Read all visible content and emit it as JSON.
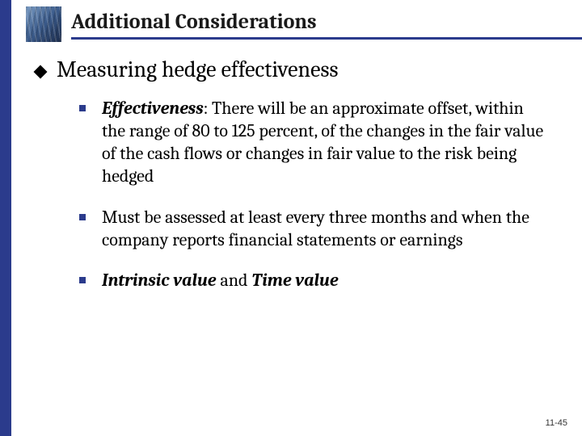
{
  "slide": {
    "title": "Additional Considerations",
    "main_bullet": "Measuring hedge effectiveness",
    "sub_bullets": [
      {
        "emphasis": "Effectiveness",
        "rest": ": There will be an approximate offset, within the range of 80 to 125 percent, of the changes in the fair value of the cash flows or changes in fair value to the risk being hedged"
      },
      {
        "emphasis": "",
        "rest": "Must be assessed at least every three months and when the company reports financial statements or earnings"
      },
      {
        "emphasis_parts": [
          "Intrinsic value",
          "Time value"
        ],
        "connector": " and "
      }
    ],
    "footer": "11-45"
  },
  "colors": {
    "accent": "#2b3b8c",
    "bullet_square": "#2b3b8c",
    "text": "#000000",
    "background": "#ffffff"
  }
}
